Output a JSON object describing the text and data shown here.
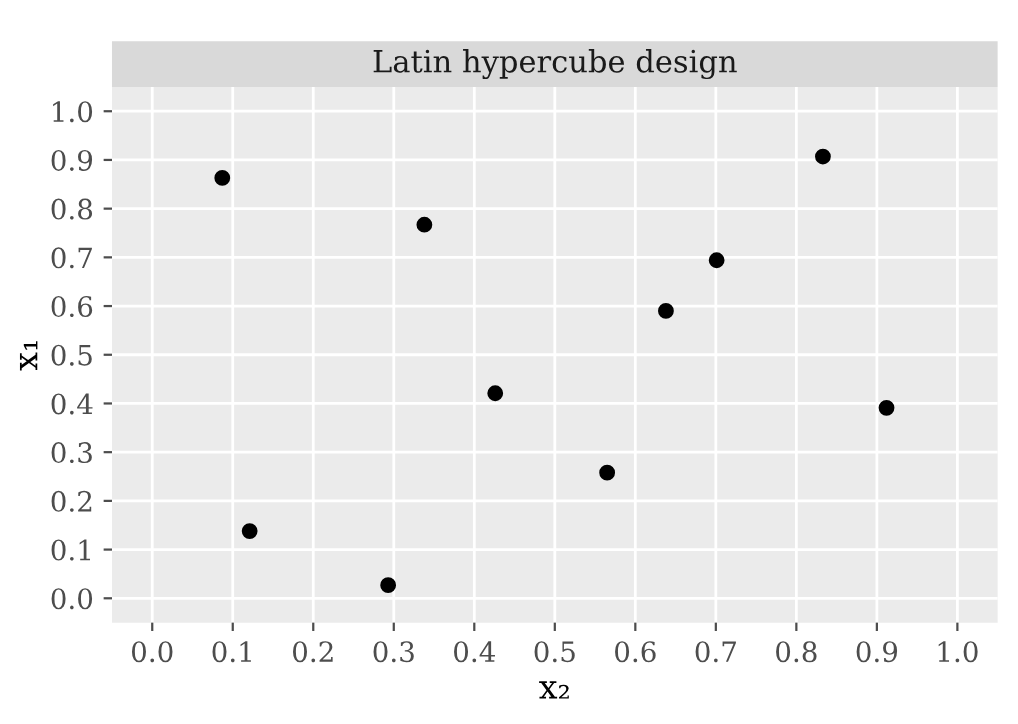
{
  "chart_data": {
    "type": "scatter",
    "title": "Latin hypercube design",
    "xlabel": "x₂",
    "ylabel": "x₁",
    "x": [
      0.087,
      0.121,
      0.293,
      0.338,
      0.426,
      0.565,
      0.638,
      0.701,
      0.833,
      0.912
    ],
    "series": [
      {
        "color": "#000000",
        "values": [
          0.863,
          0.138,
          0.027,
          0.767,
          0.421,
          0.258,
          0.59,
          0.694,
          0.907,
          0.391
        ]
      }
    ],
    "xlim": [
      -0.05,
      1.05
    ],
    "ylim": [
      -0.05,
      1.05
    ],
    "xticks": [
      {
        "value": 0,
        "label": "0.0"
      },
      0.1,
      0.2,
      0.3,
      0.4,
      0.5,
      0.6,
      0.7,
      0.8,
      0.9,
      {
        "value": 1,
        "label": "1.0"
      }
    ],
    "yticks": [
      {
        "value": 0,
        "label": "0.0"
      },
      0.1,
      0.2,
      0.3,
      0.4,
      0.5,
      0.6,
      0.7,
      0.8,
      0.9,
      {
        "value": 1,
        "label": "1.0"
      }
    ],
    "grid": true,
    "marker": "circle"
  }
}
